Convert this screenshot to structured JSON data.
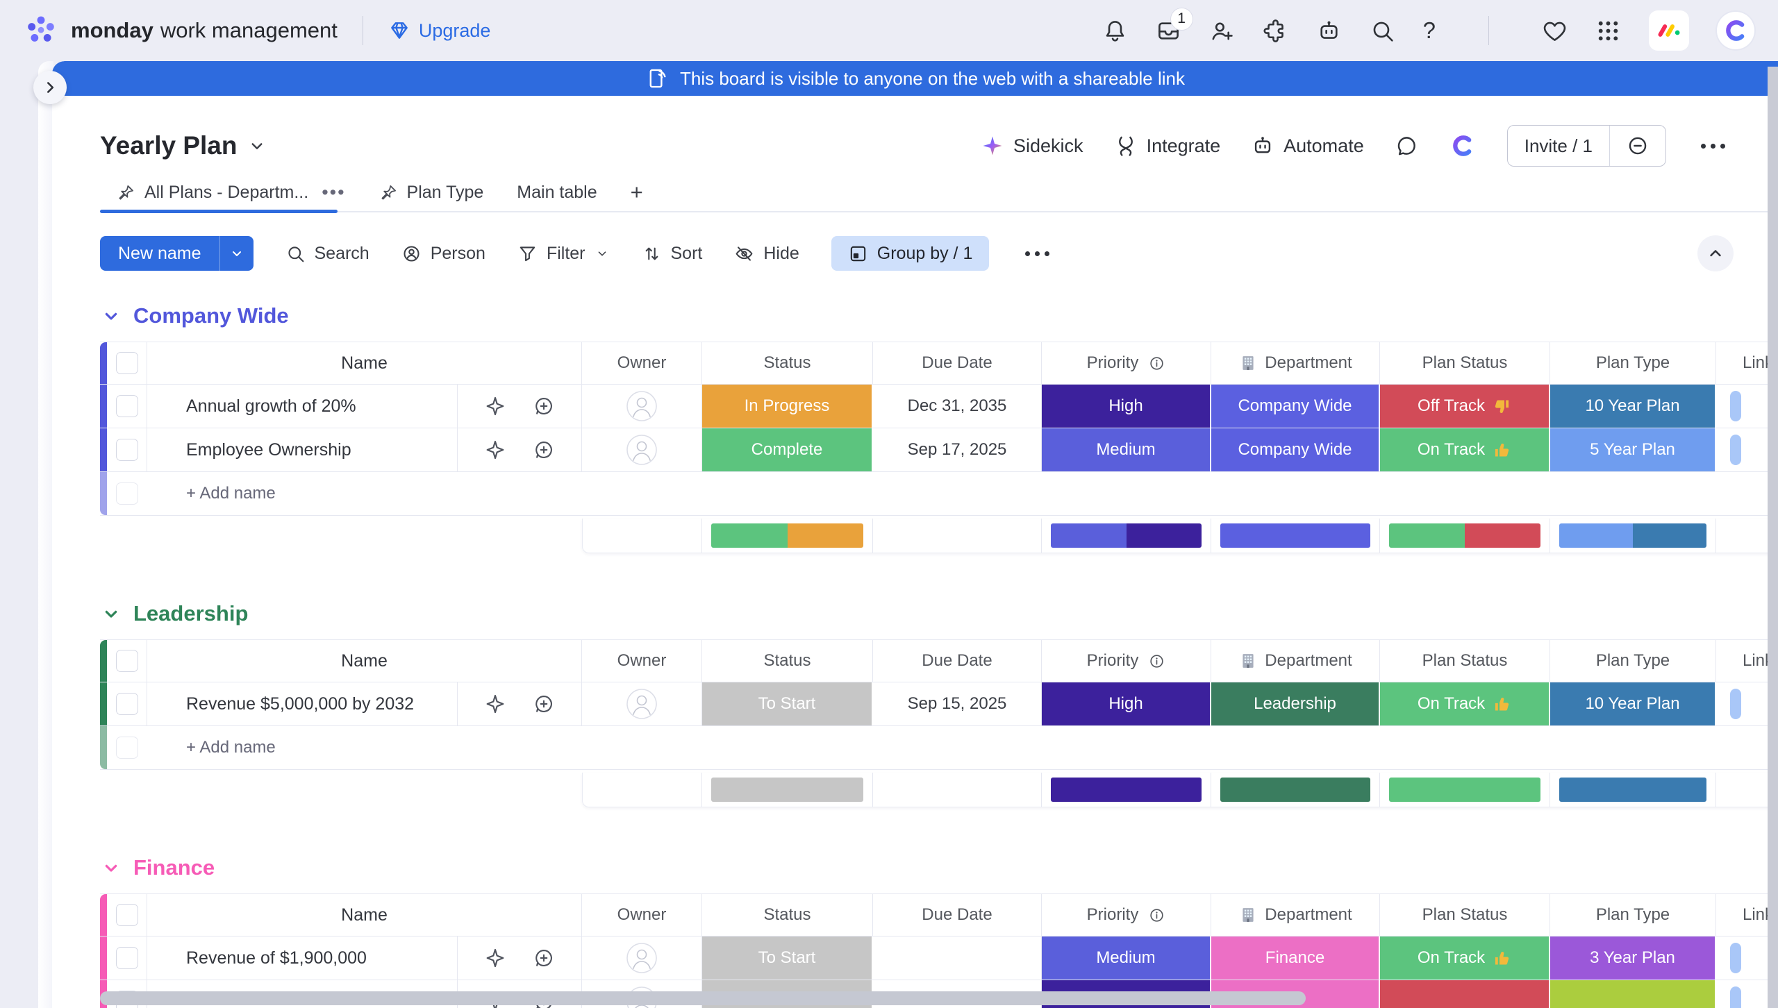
{
  "topbar": {
    "brand_bold": "monday",
    "brand_rest": "work management",
    "upgrade": "Upgrade",
    "inbox_badge": "1",
    "help_label": "?"
  },
  "banner": {
    "text": "This board is visible to anyone on the web with a shareable link"
  },
  "board": {
    "title": "Yearly Plan",
    "sidekick": "Sidekick",
    "integrate": "Integrate",
    "automate": "Automate",
    "invite": "Invite / 1"
  },
  "tabs": {
    "tab1": "All Plans - Departm...",
    "tab2": "Plan Type",
    "tab3": "Main table",
    "add": "+"
  },
  "toolbar": {
    "new_item": "New name",
    "search": "Search",
    "person": "Person",
    "filter": "Filter",
    "sort": "Sort",
    "hide": "Hide",
    "group_by": "Group by / 1"
  },
  "columns": {
    "name": "Name",
    "owner": "Owner",
    "status": "Status",
    "due": "Due Date",
    "priority": "Priority",
    "department": "Department",
    "plan_status": "Plan Status",
    "plan_type": "Plan Type",
    "link": "Link"
  },
  "colors": {
    "accent_blue": "#2E6BDE",
    "link_pill": "#A9C7F8",
    "scrollbar": "#C5C8D2"
  },
  "groups": [
    {
      "name": "Company Wide",
      "color": "#5257DB",
      "add_label": "+ Add name",
      "rows": [
        {
          "name": "Annual growth of 20%",
          "due": "Dec 31, 2035",
          "status": {
            "label": "In Progress",
            "color": "#E9A23B"
          },
          "priority": {
            "label": "High",
            "color": "#3C219C"
          },
          "department": {
            "label": "Company Wide",
            "color": "#5B60E0"
          },
          "plan_status": {
            "label": "Off Track",
            "color": "#D24B58",
            "icon": "thumbs-down"
          },
          "plan_type": {
            "label": "10 Year Plan",
            "color": "#3A7BB0"
          }
        },
        {
          "name": "Employee Ownership",
          "due": "Sep 17, 2025",
          "status": {
            "label": "Complete",
            "color": "#5CC47E"
          },
          "priority": {
            "label": "Medium",
            "color": "#5A5FDB"
          },
          "department": {
            "label": "Company Wide",
            "color": "#5B60E0"
          },
          "plan_status": {
            "label": "On Track",
            "color": "#5CC47E",
            "icon": "thumbs-up"
          },
          "plan_type": {
            "label": "5 Year Plan",
            "color": "#6F9DEF"
          }
        }
      ],
      "summary": {
        "status": [
          {
            "color": "#5CC47E",
            "pct": 50
          },
          {
            "color": "#E9A23B",
            "pct": 50
          }
        ],
        "priority": [
          {
            "color": "#5A5FDB",
            "pct": 50
          },
          {
            "color": "#3C219C",
            "pct": 50
          }
        ],
        "department": [
          {
            "color": "#5B60E0",
            "pct": 100
          }
        ],
        "plan_status": [
          {
            "color": "#5CC47E",
            "pct": 50
          },
          {
            "color": "#D24B58",
            "pct": 50
          }
        ],
        "plan_type": [
          {
            "color": "#6F9DEF",
            "pct": 50
          },
          {
            "color": "#3A7BB0",
            "pct": 50
          }
        ]
      }
    },
    {
      "name": "Leadership",
      "color": "#2E8458",
      "add_label": "+ Add name",
      "rows": [
        {
          "name": "Revenue $5,000,000 by 2032",
          "due": "Sep 15, 2025",
          "status": {
            "label": "To Start",
            "color": "#C6C6C6"
          },
          "priority": {
            "label": "High",
            "color": "#3C219C"
          },
          "department": {
            "label": "Leadership",
            "color": "#3A7D5F"
          },
          "plan_status": {
            "label": "On Track",
            "color": "#5CC47E",
            "icon": "thumbs-up"
          },
          "plan_type": {
            "label": "10 Year Plan",
            "color": "#3A7BB0"
          }
        }
      ],
      "summary": {
        "status": [
          {
            "color": "#C6C6C6",
            "pct": 100
          }
        ],
        "priority": [
          {
            "color": "#3C219C",
            "pct": 100
          }
        ],
        "department": [
          {
            "color": "#3A7D5F",
            "pct": 100
          }
        ],
        "plan_status": [
          {
            "color": "#5CC47E",
            "pct": 100
          }
        ],
        "plan_type": [
          {
            "color": "#3A7BB0",
            "pct": 100
          }
        ]
      }
    },
    {
      "name": "Finance",
      "color": "#F65BB6",
      "add_label": "+ Add name",
      "rows": [
        {
          "name": "Revenue of $1,900,000",
          "due": "",
          "status": {
            "label": "To Start",
            "color": "#C6C6C6"
          },
          "priority": {
            "label": "Medium",
            "color": "#5A5FDB"
          },
          "department": {
            "label": "Finance",
            "color": "#EC6FC5"
          },
          "plan_status": {
            "label": "On Track",
            "color": "#5CC47E",
            "icon": "thumbs-up"
          },
          "plan_type": {
            "label": "3 Year Plan",
            "color": "#9B58D9"
          }
        }
      ],
      "partial_row": {
        "status": {
          "color": "#C6C6C6"
        },
        "priority": {
          "color": "#3C219C"
        },
        "department": {
          "color": "#EC6FC5"
        },
        "plan_status": {
          "color": "#D24B58"
        },
        "plan_type": {
          "color": "#ABCD3E"
        }
      }
    }
  ]
}
